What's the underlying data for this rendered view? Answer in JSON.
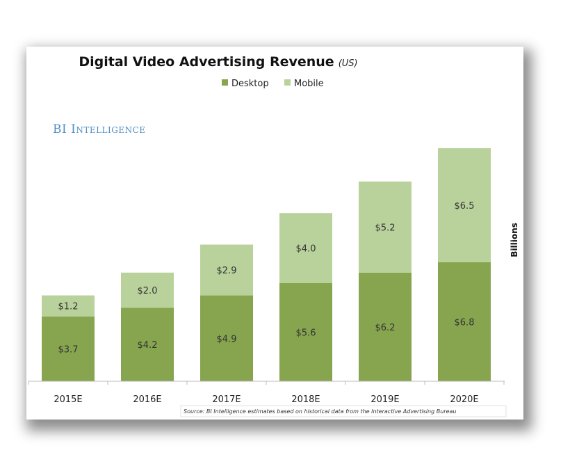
{
  "chart_data": {
    "type": "bar",
    "stacked": true,
    "title": "Digital Video Advertising Revenue",
    "subtitle": "(US)",
    "brand": "BI Intelligence",
    "ylabel": "Billions",
    "xlabel": "",
    "source": "Source: BI Intelligence estimates based on historical data from the Interactive Advertising Bureau",
    "categories": [
      "2015E",
      "2016E",
      "2017E",
      "2018E",
      "2019E",
      "2020E"
    ],
    "series": [
      {
        "name": "Desktop",
        "color": "#87a54f",
        "values": [
          3.7,
          4.2,
          4.9,
          5.6,
          6.2,
          6.8
        ],
        "labels": [
          "$3.7",
          "$4.2",
          "$4.9",
          "$5.6",
          "$6.2",
          "$6.8"
        ]
      },
      {
        "name": "Mobile",
        "color": "#b9d29b",
        "values": [
          1.2,
          2.0,
          2.9,
          4.0,
          5.2,
          6.5
        ],
        "labels": [
          "$1.2",
          "$2.0",
          "$2.9",
          "$4.0",
          "$5.2",
          "$6.5"
        ]
      }
    ],
    "ylim": [
      0,
      13.5
    ],
    "grid": false,
    "legend_position": "top-center"
  }
}
